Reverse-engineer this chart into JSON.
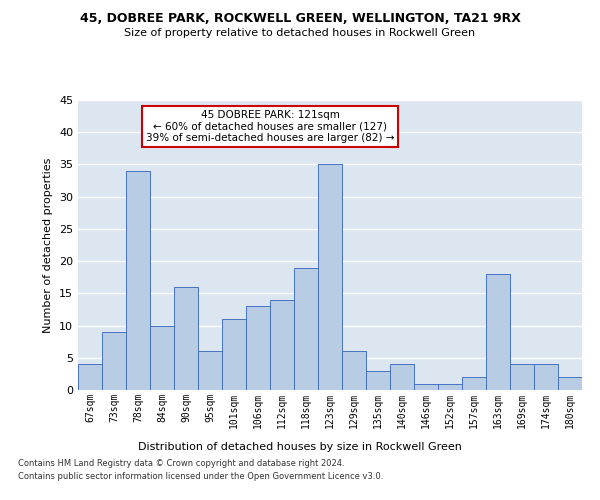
{
  "title1": "45, DOBREE PARK, ROCKWELL GREEN, WELLINGTON, TA21 9RX",
  "title2": "Size of property relative to detached houses in Rockwell Green",
  "xlabel": "Distribution of detached houses by size in Rockwell Green",
  "ylabel": "Number of detached properties",
  "categories": [
    "67sqm",
    "73sqm",
    "78sqm",
    "84sqm",
    "90sqm",
    "95sqm",
    "101sqm",
    "106sqm",
    "112sqm",
    "118sqm",
    "123sqm",
    "129sqm",
    "135sqm",
    "140sqm",
    "146sqm",
    "152sqm",
    "157sqm",
    "163sqm",
    "169sqm",
    "174sqm",
    "180sqm"
  ],
  "values": [
    4,
    9,
    34,
    10,
    16,
    6,
    11,
    13,
    14,
    19,
    35,
    6,
    3,
    4,
    1,
    1,
    2,
    18,
    4,
    4,
    2
  ],
  "bar_color": "#b8cce4",
  "bar_edge_color": "#4472c4",
  "ylim": [
    0,
    45
  ],
  "yticks": [
    0,
    5,
    10,
    15,
    20,
    25,
    30,
    35,
    40,
    45
  ],
  "annotation_line1": "45 DOBREE PARK: 121sqm",
  "annotation_line2": "← 60% of detached houses are smaller (127)",
  "annotation_line3": "39% of semi-detached houses are larger (82) →",
  "annotation_box_color": "#ffffff",
  "annotation_box_edge_color": "#cc0000",
  "bg_color": "#dce6f1",
  "grid_color": "#ffffff",
  "footer1": "Contains HM Land Registry data © Crown copyright and database right 2024.",
  "footer2": "Contains public sector information licensed under the Open Government Licence v3.0."
}
